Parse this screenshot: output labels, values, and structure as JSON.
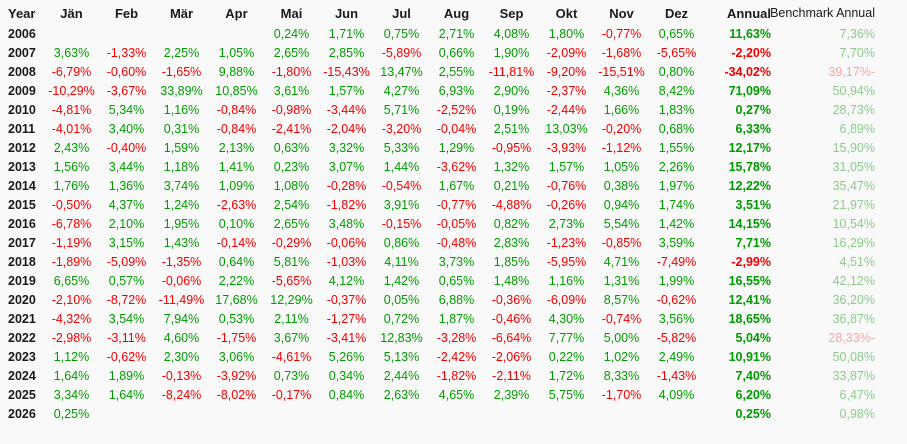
{
  "table": {
    "columns": [
      "Year",
      "Jän",
      "Feb",
      "Mär",
      "Apr",
      "Mai",
      "Jun",
      "Jul",
      "Aug",
      "Sep",
      "Okt",
      "Nov",
      "Dez",
      "Annual",
      "Benchmark Annual"
    ],
    "rows": [
      {
        "year": "2006",
        "months": [
          "",
          "",
          "",
          "",
          "0,24%",
          "1,71%",
          "0,75%",
          "2,71%",
          "4,08%",
          "1,80%",
          "-0,77%",
          "0,65%"
        ],
        "annual": "11,63%",
        "benchmark": "7,36%"
      },
      {
        "year": "2007",
        "months": [
          "3,63%",
          "-1,33%",
          "2,25%",
          "1,05%",
          "2,65%",
          "2,85%",
          "-5,89%",
          "0,66%",
          "1,90%",
          "-2,09%",
          "-1,68%",
          "-5,65%"
        ],
        "annual": "-2,20%",
        "benchmark": "7,70%"
      },
      {
        "year": "2008",
        "months": [
          "-6,79%",
          "-0,60%",
          "-1,65%",
          "9,88%",
          "-1,80%",
          "-15,43%",
          "13,47%",
          "2,55%",
          "-11,81%",
          "-9,20%",
          "-15,51%",
          "0,80%"
        ],
        "annual": "-34,02%",
        "benchmark": "-39,17%"
      },
      {
        "year": "2009",
        "months": [
          "-10,29%",
          "-3,67%",
          "33,89%",
          "10,85%",
          "3,61%",
          "1,57%",
          "4,27%",
          "6,93%",
          "2,90%",
          "-2,37%",
          "4,36%",
          "8,42%"
        ],
        "annual": "71,09%",
        "benchmark": "50,94%"
      },
      {
        "year": "2010",
        "months": [
          "-4,81%",
          "5,34%",
          "1,16%",
          "-0,84%",
          "-0,98%",
          "-3,44%",
          "5,71%",
          "-2,52%",
          "0,19%",
          "-2,44%",
          "1,66%",
          "1,83%"
        ],
        "annual": "0,27%",
        "benchmark": "28,73%"
      },
      {
        "year": "2011",
        "months": [
          "-4,01%",
          "3,40%",
          "0,31%",
          "-0,84%",
          "-2,41%",
          "-2,04%",
          "-3,20%",
          "-0,04%",
          "2,51%",
          "13,03%",
          "-0,20%",
          "0,68%"
        ],
        "annual": "6,33%",
        "benchmark": "6,89%"
      },
      {
        "year": "2012",
        "months": [
          "2,43%",
          "-0,40%",
          "1,59%",
          "2,13%",
          "0,63%",
          "3,32%",
          "5,33%",
          "1,29%",
          "-0,95%",
          "-3,93%",
          "-1,12%",
          "1,55%"
        ],
        "annual": "12,17%",
        "benchmark": "15,90%"
      },
      {
        "year": "2013",
        "months": [
          "1,56%",
          "3,44%",
          "1,18%",
          "1,41%",
          "0,23%",
          "3,07%",
          "1,44%",
          "-3,62%",
          "1,32%",
          "1,57%",
          "1,05%",
          "2,26%"
        ],
        "annual": "15,78%",
        "benchmark": "31,05%"
      },
      {
        "year": "2014",
        "months": [
          "1,76%",
          "1,36%",
          "3,74%",
          "1,09%",
          "1,08%",
          "-0,28%",
          "-0,54%",
          "1,67%",
          "0,21%",
          "-0,76%",
          "0,38%",
          "1,97%"
        ],
        "annual": "12,22%",
        "benchmark": "35,47%"
      },
      {
        "year": "2015",
        "months": [
          "-0,50%",
          "4,37%",
          "1,24%",
          "-2,63%",
          "2,54%",
          "-1,82%",
          "3,91%",
          "-0,77%",
          "-4,88%",
          "-0,26%",
          "0,94%",
          "1,74%"
        ],
        "annual": "3,51%",
        "benchmark": "21,97%"
      },
      {
        "year": "2016",
        "months": [
          "-6,78%",
          "2,10%",
          "1,95%",
          "0,10%",
          "2,65%",
          "3,48%",
          "-0,15%",
          "-0,05%",
          "0,82%",
          "2,73%",
          "5,54%",
          "1,42%"
        ],
        "annual": "14,15%",
        "benchmark": "10,54%"
      },
      {
        "year": "2017",
        "months": [
          "-1,19%",
          "3,15%",
          "1,43%",
          "-0,14%",
          "-0,29%",
          "-0,06%",
          "0,86%",
          "-0,48%",
          "2,83%",
          "-1,23%",
          "-0,85%",
          "3,59%"
        ],
        "annual": "7,71%",
        "benchmark": "16,29%"
      },
      {
        "year": "2018",
        "months": [
          "-1,89%",
          "-5,09%",
          "-1,35%",
          "0,64%",
          "5,81%",
          "-1,03%",
          "4,11%",
          "3,73%",
          "1,85%",
          "-5,95%",
          "4,71%",
          "-7,49%"
        ],
        "annual": "-2,99%",
        "benchmark": "4,51%"
      },
      {
        "year": "2019",
        "months": [
          "6,65%",
          "0,57%",
          "-0,06%",
          "2,22%",
          "-5,65%",
          "4,12%",
          "1,42%",
          "0,65%",
          "1,48%",
          "1,16%",
          "1,31%",
          "1,99%"
        ],
        "annual": "16,55%",
        "benchmark": "42,12%"
      },
      {
        "year": "2020",
        "months": [
          "-2,10%",
          "-8,72%",
          "-11,49%",
          "17,68%",
          "12,29%",
          "-0,37%",
          "0,05%",
          "6,88%",
          "-0,36%",
          "-6,09%",
          "8,57%",
          "-0,62%"
        ],
        "annual": "12,41%",
        "benchmark": "36,20%"
      },
      {
        "year": "2021",
        "months": [
          "-4,32%",
          "3,54%",
          "7,94%",
          "0,53%",
          "2,11%",
          "-1,27%",
          "0,72%",
          "1,87%",
          "-0,46%",
          "4,30%",
          "-0,74%",
          "3,56%"
        ],
        "annual": "18,65%",
        "benchmark": "36,87%"
      },
      {
        "year": "2022",
        "months": [
          "-2,98%",
          "-3,11%",
          "4,60%",
          "-1,75%",
          "3,67%",
          "-3,41%",
          "12,83%",
          "-3,28%",
          "-6,64%",
          "7,77%",
          "5,00%",
          "-5,82%"
        ],
        "annual": "5,04%",
        "benchmark": "-28,33%"
      },
      {
        "year": "2023",
        "months": [
          "1,12%",
          "-0,62%",
          "2,30%",
          "3,06%",
          "-4,61%",
          "5,26%",
          "5,13%",
          "-2,42%",
          "-2,06%",
          "0,22%",
          "1,02%",
          "2,49%"
        ],
        "annual": "10,91%",
        "benchmark": "50,08%"
      },
      {
        "year": "2024",
        "months": [
          "1,64%",
          "1,89%",
          "-0,13%",
          "-3,92%",
          "0,73%",
          "0,34%",
          "2,44%",
          "-1,82%",
          "-2,11%",
          "1,72%",
          "8,33%",
          "-1,43%"
        ],
        "annual": "7,40%",
        "benchmark": "33,87%"
      },
      {
        "year": "2025",
        "months": [
          "3,34%",
          "1,64%",
          "-8,24%",
          "-8,02%",
          "-0,17%",
          "0,84%",
          "2,63%",
          "4,65%",
          "2,39%",
          "5,75%",
          "-1,70%",
          "4,09%"
        ],
        "annual": "6,20%",
        "benchmark": "6,47%"
      },
      {
        "year": "2026",
        "months": [
          "0,25%",
          "",
          "",
          "",
          "",
          "",
          "",
          "",
          "",
          "",
          "",
          ""
        ],
        "annual": "0,25%",
        "benchmark": "0,98%"
      }
    ]
  },
  "colors": {
    "positive": "#009b00",
    "negative": "#f40000",
    "benchmark_positive": "#8ccb8c",
    "benchmark_negative": "#f5a6a6",
    "header_text": "#1a1a1a",
    "background": "#f9f9f9"
  }
}
